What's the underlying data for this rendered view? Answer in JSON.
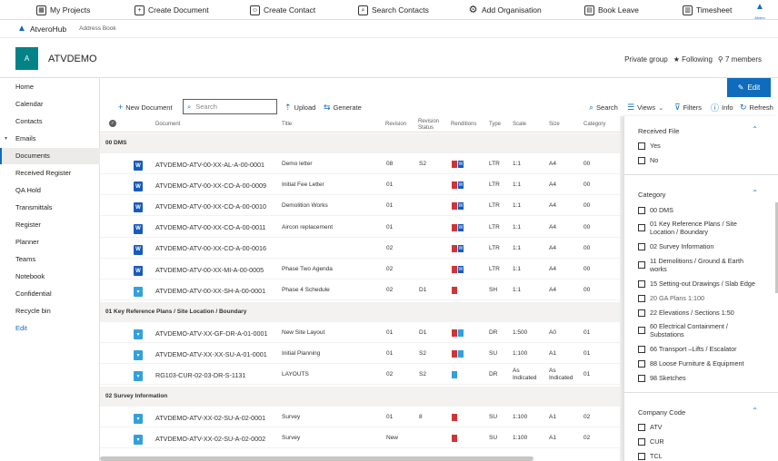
{
  "toolbar": {
    "items": [
      {
        "label": "My Projects",
        "icon": "projects-icon"
      },
      {
        "label": "Create Document",
        "icon": "create-document-icon"
      },
      {
        "label": "Create Contact",
        "icon": "create-contact-icon"
      },
      {
        "label": "Search Contacts",
        "icon": "search-contacts-icon"
      },
      {
        "label": "Add Organisation",
        "icon": "gear-icon"
      },
      {
        "label": "Book Leave",
        "icon": "book-leave-icon"
      },
      {
        "label": "Timesheet",
        "icon": "timesheet-icon"
      }
    ],
    "logo_text": "Atvero"
  },
  "brand": {
    "name": "AtveroHub",
    "link": "Address Book"
  },
  "site": {
    "avatar": "A",
    "name": "ATVDEMO",
    "privacy": "Private group",
    "following": "Following",
    "members": "7 members"
  },
  "nav": {
    "items": [
      "Home",
      "Calendar",
      "Contacts",
      "Emails",
      "Documents",
      "Received Register",
      "QA Hold",
      "Transmittals",
      "Register",
      "Planner",
      "Teams",
      "Notebook",
      "Confidential",
      "Recycle bin",
      "Edit"
    ],
    "selected": "Documents"
  },
  "commands": {
    "new_document": "New Document",
    "search_placeholder": "Search",
    "upload": "Upload",
    "generate": "Generate",
    "search": "Search",
    "views": "Views",
    "filters": "Filters",
    "info": "Info",
    "refresh": "Refresh",
    "edit": "Edit"
  },
  "grid": {
    "columns": [
      "Document",
      "Title",
      "Revision",
      "Revision Status",
      "Renditions",
      "Type",
      "Scale",
      "Size",
      "Category"
    ],
    "groups": [
      {
        "name": "00 DMS",
        "rows": [
          {
            "file": "word",
            "document": "ATVDEMO-ATV-00-XX-AL-A-00-0001",
            "title": "Demo letter",
            "revision": "08",
            "status": "S2",
            "renditions": [
              "pdf",
              "word"
            ],
            "type": "LTR",
            "scale": "1:1",
            "size": "A4",
            "category": "00"
          },
          {
            "file": "word",
            "document": "ATVDEMO-ATV-00-XX-CO-A-00-0009",
            "title": "Initial Fee Letter",
            "revision": "01",
            "status": "",
            "renditions": [
              "pdf",
              "word"
            ],
            "type": "LTR",
            "scale": "1:1",
            "size": "A4",
            "category": "00"
          },
          {
            "file": "word",
            "document": "ATVDEMO-ATV-00-XX-CO-A-00-0010",
            "title": "Demolition Works",
            "revision": "01",
            "status": "",
            "renditions": [
              "pdf",
              "word"
            ],
            "type": "LTR",
            "scale": "1:1",
            "size": "A4",
            "category": "00"
          },
          {
            "file": "word",
            "document": "ATVDEMO-ATV-00-XX-CO-A-00-0011",
            "title": "Aircon replacement",
            "revision": "01",
            "status": "",
            "renditions": [
              "pdf",
              "word"
            ],
            "type": "LTR",
            "scale": "1:1",
            "size": "A4",
            "category": "00"
          },
          {
            "file": "word",
            "document": "ATVDEMO-ATV-00-XX-CO-A-00-0016",
            "title": "",
            "revision": "02",
            "status": "",
            "renditions": [
              "pdf",
              "word"
            ],
            "type": "LTR",
            "scale": "1:1",
            "size": "A4",
            "category": "00"
          },
          {
            "file": "word",
            "document": "ATVDEMO-ATV-00-XX-MI-A-00-0005",
            "title": "Phase Two Agenda",
            "revision": "02",
            "status": "",
            "renditions": [
              "pdf",
              "word"
            ],
            "type": "LTR",
            "scale": "1:1",
            "size": "A4",
            "category": "00"
          },
          {
            "file": "sheet",
            "document": "ATVDEMO-ATV-00-XX-SH-A-00-0001",
            "title": "Phase 4 Schedule",
            "revision": "02",
            "status": "D1",
            "renditions": [
              "pdf"
            ],
            "type": "SH",
            "scale": "1:1",
            "size": "A4",
            "category": "00"
          }
        ]
      },
      {
        "name": "01 Key Reference Plans / Site Location / Boundary",
        "rows": [
          {
            "file": "sheet",
            "document": "ATVDEMO-ATV-XX-GF-DR-A-01-0001",
            "title": "New Site Layout",
            "revision": "01",
            "status": "D1",
            "renditions": [
              "pdf",
              "sheet"
            ],
            "type": "DR",
            "scale": "1:500",
            "size": "A0",
            "category": "01"
          },
          {
            "file": "sheet",
            "document": "ATVDEMO-ATV-XX-XX-SU-A-01-0001",
            "title": "Initial Planning",
            "revision": "01",
            "status": "S2",
            "renditions": [
              "pdf",
              "sheet"
            ],
            "type": "SU",
            "scale": "1:100",
            "size": "A1",
            "category": "01"
          },
          {
            "file": "sheet",
            "document": "RG103-CUR-02-03-DR-S-1131",
            "title": "LAYOUTS",
            "revision": "02",
            "status": "S2",
            "renditions": [
              "sheet"
            ],
            "type": "DR",
            "scale": "As Indicated",
            "size": "As Indicated",
            "category": "01"
          }
        ]
      },
      {
        "name": "02 Survey Information",
        "rows": [
          {
            "file": "sheet",
            "document": "ATVDEMO-ATV-XX-02-SU-A-02-0001",
            "title": "Survey",
            "revision": "01",
            "status": "8",
            "renditions": [
              "pdf"
            ],
            "type": "SU",
            "scale": "1:100",
            "size": "A1",
            "category": "02"
          },
          {
            "file": "sheet",
            "document": "ATVDEMO-ATV-XX-02-SU-A-02-0002",
            "title": "Survey",
            "revision": "New",
            "status": "",
            "renditions": [
              "pdf"
            ],
            "type": "SU",
            "scale": "1:100",
            "size": "A1",
            "category": "02"
          }
        ]
      }
    ]
  },
  "filters": {
    "received_file": {
      "title": "Received File",
      "options": [
        "Yes",
        "No"
      ]
    },
    "category": {
      "title": "Category",
      "options": [
        "00 DMS",
        "01 Key Reference Plans / Site Location / Boundary",
        "02 Survey Information",
        "11 Demolitions / Ground & Earth works",
        "15 Setting-out Drawings / Slab Edge",
        "20 GA Plans 1:100",
        "22 Elevations / Sections 1:50",
        "60 Electrical Containment / Substations",
        "66 Transport –Lifts / Escalator",
        "88 Loose Furniture & Equipment",
        "98 Sketches"
      ]
    },
    "company_code": {
      "title": "Company Code",
      "options": [
        "ATV",
        "CUR",
        "TCL"
      ]
    }
  },
  "colors": {
    "accent": "#0f6cbd",
    "avatar": "#038387",
    "pdf": "#d13438",
    "word": "#185abd",
    "sheet": "#33a0dd"
  }
}
